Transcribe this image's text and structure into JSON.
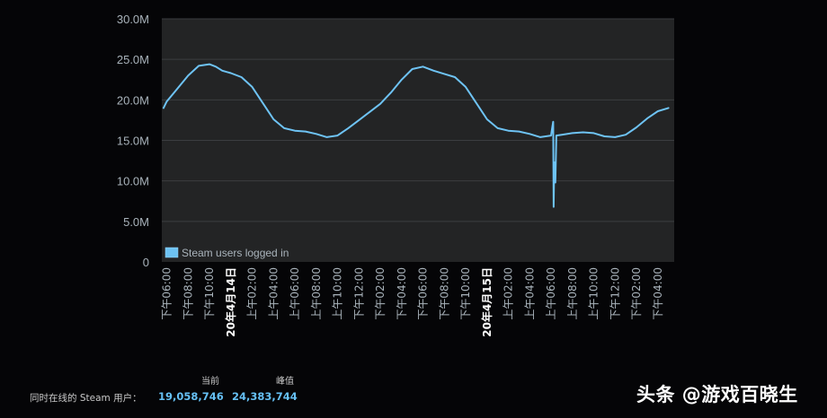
{
  "chart_data": {
    "type": "line",
    "y_ticks": [
      "30.0M",
      "25.0M",
      "20.0M",
      "15.0M",
      "10.0M",
      "5.0M",
      "0"
    ],
    "ylim": [
      0,
      30000000
    ],
    "grid": true,
    "legend": "bottom-left",
    "x_ticks": [
      "下午06:00",
      "下午08:00",
      "下午10:00",
      "20年4月14日",
      "上午02:00",
      "上午04:00",
      "上午06:00",
      "上午08:00",
      "上午10:00",
      "下午12:00",
      "下午02:00",
      "下午04:00",
      "下午06:00",
      "下午08:00",
      "下午10:00",
      "20年4月15日",
      "上午02:00",
      "上午04:00",
      "上午06:00",
      "上午08:00",
      "上午10:00",
      "下午12:00",
      "下午02:00",
      "下午04:00"
    ],
    "x_tick_highlight": [
      "20年4月14日",
      "20年4月15日"
    ],
    "series": [
      {
        "name": "Steam users logged in",
        "color": "#6ec3f4",
        "x": [
          -0.15,
          0,
          0.5,
          1,
          1.5,
          2,
          2.3,
          2.6,
          3,
          3.5,
          4,
          4.5,
          5,
          5.5,
          6,
          6.5,
          7,
          7.5,
          8,
          8.5,
          9,
          9.5,
          10,
          10.5,
          11,
          11.5,
          12,
          12.5,
          13,
          13.5,
          14,
          14.5,
          15,
          15.5,
          16,
          16.5,
          17,
          17.5,
          18,
          18.05,
          18.1,
          18.12,
          18.15,
          18.2,
          18.25,
          18.5,
          19,
          19.5,
          20,
          20.5,
          21,
          21.5,
          22,
          22.5,
          23,
          23.5
        ],
        "y": [
          19.0,
          19.8,
          21.4,
          23.0,
          24.2,
          24.4,
          24.1,
          23.6,
          23.3,
          22.8,
          21.6,
          19.6,
          17.6,
          16.5,
          16.2,
          16.1,
          15.8,
          15.4,
          15.6,
          16.5,
          17.5,
          18.5,
          19.5,
          20.9,
          22.5,
          23.8,
          24.1,
          23.6,
          23.2,
          22.8,
          21.6,
          19.6,
          17.6,
          16.5,
          16.2,
          16.1,
          15.8,
          15.4,
          15.6,
          16.5,
          17.3,
          6.8,
          12.3,
          9.8,
          15.6,
          15.7,
          15.9,
          16.0,
          15.9,
          15.5,
          15.4,
          15.7,
          16.6,
          17.7,
          18.6,
          19.0
        ]
      }
    ]
  },
  "stats": {
    "col_current": "当前",
    "col_peak": "峰值",
    "label": "同时在线的 Steam 用户：",
    "current": "19,058,746",
    "peak": "24,383,744"
  },
  "watermark": "头条 @游戏百晓生"
}
